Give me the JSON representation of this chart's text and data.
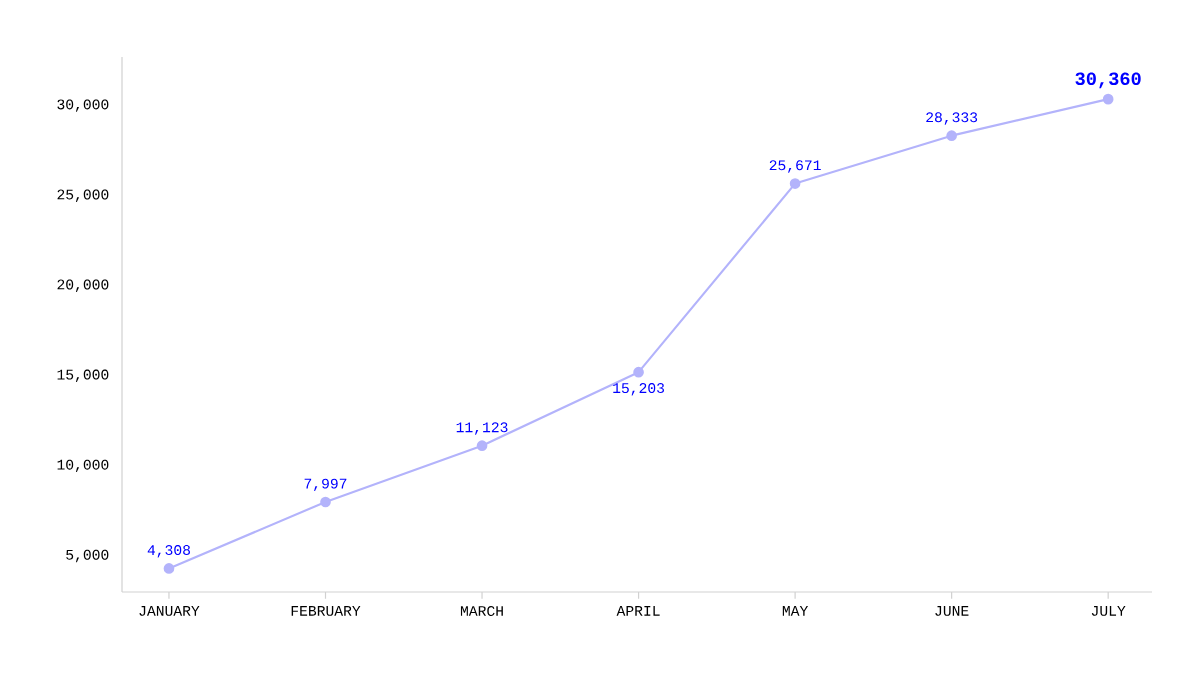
{
  "chart_data": {
    "type": "line",
    "categories": [
      "JANUARY",
      "FEBRUARY",
      "MARCH",
      "APRIL",
      "MAY",
      "JUNE",
      "JULY"
    ],
    "series": [
      {
        "color": "#b3b3fb",
        "values": [
          4308,
          7997,
          11123,
          15203,
          25671,
          28333,
          30360
        ],
        "value_labels": [
          "4,308",
          "7,997",
          "11,123",
          "15,203",
          "25,671",
          "28,333",
          "30,360"
        ]
      }
    ],
    "ylim": [
      3000,
      32700
    ],
    "yticks": [
      {
        "value": 5000,
        "label": "5,000"
      },
      {
        "value": 10000,
        "label": "10,000"
      },
      {
        "value": 15000,
        "label": "15,000"
      },
      {
        "value": 20000,
        "label": "20,000"
      },
      {
        "value": 25000,
        "label": "25,000"
      },
      {
        "value": 30000,
        "label": "30,000"
      }
    ],
    "marker": "circle",
    "line_style": "solid",
    "grid": false
  }
}
